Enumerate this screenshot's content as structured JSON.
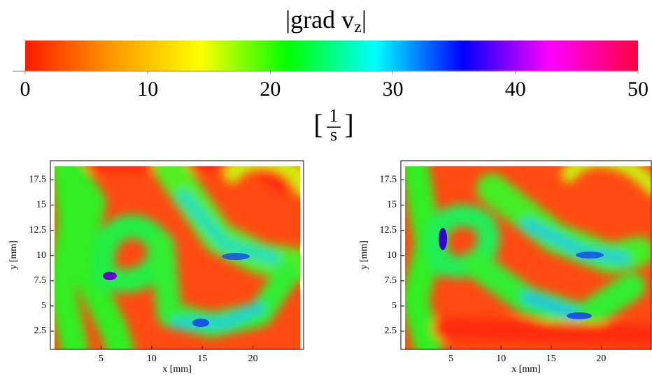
{
  "chart_data": {
    "type": "heatmap",
    "title": {
      "text": "|grad v",
      "subscript": "z",
      "end": "|"
    },
    "colorbar": {
      "lim": [
        0,
        50
      ],
      "ticks": [
        0,
        10,
        20,
        30,
        40,
        50
      ],
      "colors": [
        "#ff1a00",
        "#ff9900",
        "#ffff00",
        "#00ff00",
        "#00ffff",
        "#0000ff",
        "#ff00ff",
        "#ff0040"
      ]
    },
    "units": {
      "open": "[",
      "numerator": "1",
      "denominator": "s",
      "close": "]"
    },
    "panels": [
      {
        "xlabel": "x [mm]",
        "ylabel": "y [mm]",
        "xlim": [
          0,
          25
        ],
        "ylim": [
          0.7,
          19.4
        ],
        "xticks": [
          5,
          10,
          15,
          20
        ],
        "yticks": [
          2.5,
          5,
          7.5,
          10,
          12.5,
          15,
          17.5
        ]
      },
      {
        "xlabel": "x [mm]",
        "ylabel": "y [mm]",
        "xlim": [
          0,
          25
        ],
        "ylim": [
          0.7,
          19.4
        ],
        "xticks": [
          5,
          10,
          15,
          20
        ],
        "yticks": [
          2.5,
          5,
          7.5,
          10,
          12.5,
          15,
          17.5
        ]
      }
    ]
  }
}
